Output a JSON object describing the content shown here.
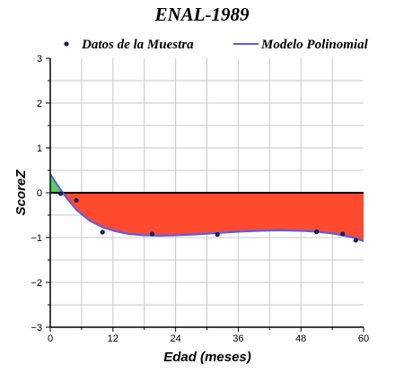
{
  "chart_data": {
    "type": "line",
    "title": "ENAL-1989",
    "xlabel": "Edad (meses)",
    "ylabel": "ScoreZ",
    "xlim": [
      0,
      60
    ],
    "ylim": [
      -3,
      3
    ],
    "x_ticks": [
      0,
      12,
      24,
      36,
      48,
      60
    ],
    "y_ticks": [
      -3,
      -2,
      -1,
      0,
      1,
      2,
      3
    ],
    "x_tick_labels": [
      "0",
      "12",
      "24",
      "36",
      "48",
      "60"
    ],
    "y_tick_labels": [
      "-3",
      "-2",
      "-1",
      "0",
      "1",
      "2",
      "3"
    ],
    "grid": true,
    "legend_position": "top",
    "series": [
      {
        "name": "Datos de la Muestra",
        "kind": "scatter",
        "color": "#1a1a5e",
        "x": [
          2,
          5,
          10,
          19.5,
          32,
          51,
          56,
          58.5
        ],
        "y": [
          -0.02,
          -0.17,
          -0.88,
          -0.92,
          -0.93,
          -0.87,
          -0.92,
          -1.06
        ]
      },
      {
        "name": "Modelo Polinomial",
        "kind": "line",
        "color": "#5a5aee",
        "x": [
          0,
          1.5,
          3,
          5,
          7.5,
          10,
          12.5,
          15,
          18,
          21,
          24,
          28,
          32,
          36,
          40,
          44,
          48,
          51,
          54,
          56,
          58,
          60
        ],
        "y": [
          0.42,
          0.15,
          -0.1,
          -0.38,
          -0.62,
          -0.77,
          -0.86,
          -0.92,
          -0.95,
          -0.96,
          -0.95,
          -0.93,
          -0.9,
          -0.87,
          -0.85,
          -0.84,
          -0.85,
          -0.87,
          -0.91,
          -0.95,
          -1.0,
          -1.08
        ]
      }
    ],
    "fills": {
      "above_zero_color": "#5ccc5c",
      "below_zero_color": "#ff4a2e"
    }
  }
}
